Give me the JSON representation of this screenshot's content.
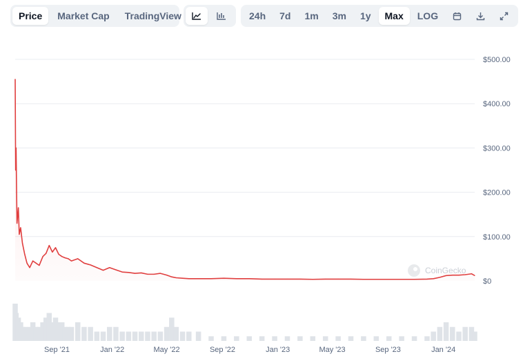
{
  "toolbar": {
    "type_tabs": [
      "Price",
      "Market Cap",
      "TradingView"
    ],
    "active_type": "Price",
    "view_icons": [
      "line-chart-icon",
      "candlestick-chart-icon"
    ],
    "ranges": [
      "24h",
      "7d",
      "1m",
      "3m",
      "1y",
      "Max",
      "LOG"
    ],
    "active_range": "Max",
    "tool_icons": [
      "calendar-icon",
      "download-icon",
      "expand-icon"
    ]
  },
  "watermark": "CoinGecko",
  "colors": {
    "line": "#e03e3e",
    "area_fill": "#fbe3e3",
    "grid": "#e9ecf0",
    "volume": "#dfe3e8",
    "active_bg": "#ffffff",
    "group_bg": "#eff2f5"
  },
  "chart_data": {
    "type": "area",
    "title": "",
    "xlabel": "",
    "ylabel": "",
    "ylim": [
      0,
      500
    ],
    "y_ticks": [
      0,
      100,
      200,
      300,
      400,
      500
    ],
    "y_tick_labels": [
      "$0",
      "$100.00",
      "$200.00",
      "$300.00",
      "$400.00",
      "$500.00"
    ],
    "x_tick_labels": [
      "Sep '21",
      "Jan '22",
      "May '22",
      "Sep '22",
      "Jan '23",
      "May '23",
      "Sep '23",
      "Jan '24"
    ],
    "grid": true,
    "series": [
      {
        "name": "",
        "x": [
          "2021-06-01",
          "2021-06-02",
          "2021-06-03",
          "2021-06-05",
          "2021-06-08",
          "2021-06-10",
          "2021-06-13",
          "2021-06-17",
          "2021-06-22",
          "2021-06-27",
          "2021-07-03",
          "2021-07-10",
          "2021-07-17",
          "2021-07-24",
          "2021-08-01",
          "2021-08-08",
          "2021-08-15",
          "2021-08-22",
          "2021-08-29",
          "2021-09-05",
          "2021-09-12",
          "2021-09-19",
          "2021-09-26",
          "2021-10-03",
          "2021-10-17",
          "2021-10-31",
          "2021-11-14",
          "2021-11-28",
          "2021-12-12",
          "2021-12-26",
          "2022-01-09",
          "2022-01-23",
          "2022-02-06",
          "2022-02-20",
          "2022-03-06",
          "2022-03-20",
          "2022-04-03",
          "2022-04-17",
          "2022-05-01",
          "2022-05-12",
          "2022-05-22",
          "2022-06-05",
          "2022-06-19",
          "2022-07-10",
          "2022-08-07",
          "2022-09-04",
          "2022-10-02",
          "2022-10-30",
          "2022-11-27",
          "2022-12-25",
          "2023-01-22",
          "2023-02-19",
          "2023-03-19",
          "2023-04-16",
          "2023-05-14",
          "2023-06-11",
          "2023-07-09",
          "2023-08-06",
          "2023-09-03",
          "2023-10-01",
          "2023-10-29",
          "2023-11-26",
          "2023-12-10",
          "2023-12-24",
          "2024-01-07",
          "2024-01-21",
          "2024-02-04",
          "2024-02-18",
          "2024-03-03",
          "2024-03-10"
        ],
        "y": [
          455,
          250,
          300,
          130,
          165,
          105,
          120,
          85,
          60,
          40,
          30,
          45,
          40,
          35,
          55,
          62,
          80,
          65,
          75,
          60,
          55,
          52,
          50,
          45,
          50,
          40,
          36,
          30,
          24,
          30,
          25,
          20,
          19,
          17,
          18,
          15,
          15,
          17,
          13,
          9,
          7,
          6,
          5,
          5,
          5,
          6,
          5,
          5,
          4,
          4,
          4,
          4,
          3.5,
          4,
          4,
          4,
          3.5,
          3.5,
          3.5,
          3.5,
          3.5,
          4,
          5,
          8,
          12,
          13,
          13,
          14,
          16,
          12
        ]
      }
    ],
    "volume": [
      8,
      5,
      6,
      4,
      5,
      3,
      4,
      3,
      3,
      2,
      3,
      4,
      3,
      3,
      4,
      5,
      6,
      4,
      5,
      4,
      4,
      3,
      3,
      3,
      4,
      3,
      3,
      2,
      2,
      3,
      3,
      2,
      2,
      2,
      2,
      2,
      2,
      2,
      3,
      5,
      3,
      2,
      2,
      2,
      1,
      1,
      1,
      1,
      1,
      1,
      1,
      1,
      1,
      1,
      1,
      1,
      1,
      1,
      1,
      1,
      1,
      1,
      2,
      3,
      4,
      3,
      2,
      3,
      3,
      2
    ]
  }
}
